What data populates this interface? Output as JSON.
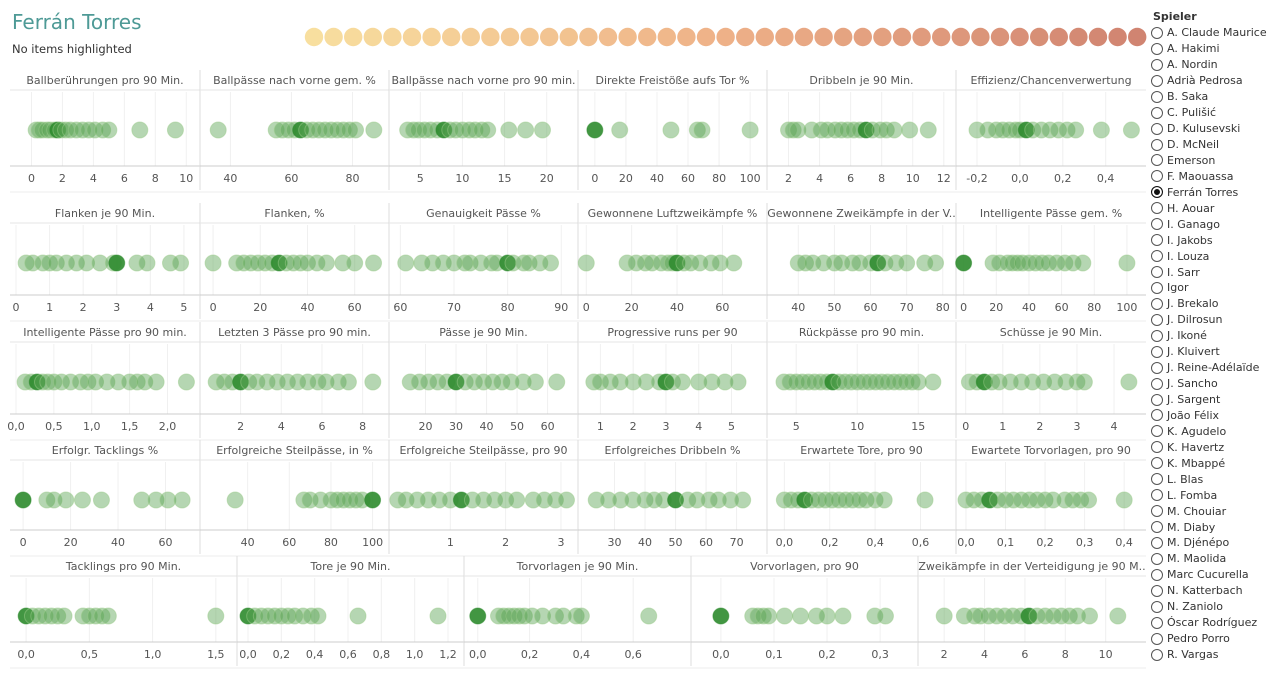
{
  "header": {
    "title": "Ferrán Torres",
    "subtitle": "No items highlighted"
  },
  "colorbar": {
    "dot_count": 43,
    "color_start": "#f7d98e",
    "color_mid": "#eba373",
    "color_end": "#c86e58"
  },
  "colors": {
    "dot": "#5aa454",
    "dot_light": "#9ccb8c",
    "dot_highlight": "#2e8b2e",
    "axis": "#cccccc"
  },
  "legend": {
    "title": "Spieler",
    "selected": "Ferrán Torres",
    "items": [
      "A. Claude Maurice",
      "A. Hakimi",
      "A. Nordin",
      "Adrià Pedrosa",
      "B. Saka",
      "C. Pulišić",
      "D. Kulusevski",
      "D. McNeil",
      "Emerson",
      "F. Maouassa",
      "Ferrán Torres",
      "H. Aouar",
      "I. Ganago",
      "I. Jakobs",
      "I. Louza",
      "I. Sarr",
      "Igor",
      "J. Brekalo",
      "J. Dilrosun",
      "J. Ikoné",
      "J. Kluivert",
      "J. Reine-Adélaïde",
      "J. Sancho",
      "J. Sargent",
      "João Félix",
      "K. Agudelo",
      "K. Havertz",
      "K. Mbappé",
      "L. Blas",
      "L. Fomba",
      "M. Chouiar",
      "M. Diaby",
      "M. Djénépo",
      "M. Maolida",
      "Marc Cucurella",
      "N. Katterbach",
      "N. Zaniolo",
      "Óscar Rodríguez",
      "Pedro Porro",
      "R. Vargas"
    ]
  },
  "chart_data": [
    {
      "type": "scatter",
      "title": "Ballberührungen pro 90 Min.",
      "xlim": [
        -1,
        10.5
      ],
      "ticks": [
        "0",
        "2",
        "4",
        "6",
        "8",
        "10"
      ],
      "tick_values": [
        0,
        2,
        4,
        6,
        8,
        10
      ],
      "values": [
        0.3,
        0.5,
        0.7,
        1.0,
        1.2,
        1.5,
        1.7,
        1.9,
        2.2,
        2.5,
        2.9,
        3.3,
        3.7,
        4.1,
        4.6,
        5.0,
        7.0,
        9.3
      ],
      "highlight": 1.7
    },
    {
      "type": "scatter",
      "title": "Ballpässe nach vorne gem. %",
      "xlim": [
        32,
        90
      ],
      "ticks": [
        "40",
        "60",
        "80"
      ],
      "tick_values": [
        40,
        60,
        80
      ],
      "values": [
        36,
        55,
        57,
        59,
        61,
        63,
        65,
        67,
        69,
        71,
        73,
        75,
        77,
        79,
        81,
        87
      ],
      "highlight": 63
    },
    {
      "type": "scatter",
      "title": "Ballpässe nach vorne pro 90 min.",
      "xlim": [
        2,
        23
      ],
      "ticks": [
        "5",
        "10",
        "15",
        "20"
      ],
      "tick_values": [
        5,
        10,
        15,
        20
      ],
      "values": [
        3.5,
        4.2,
        4.8,
        5.5,
        6.2,
        7.0,
        7.8,
        8.5,
        9.2,
        10.0,
        10.8,
        11.5,
        12.3,
        13.0,
        15.5,
        17.5,
        19.5
      ],
      "highlight": 7.8
    },
    {
      "type": "scatter",
      "title": "Direkte Freistöße aufs Tor %",
      "xlim": [
        -7,
        107
      ],
      "ticks": [
        "0",
        "20",
        "40",
        "60",
        "80",
        "100"
      ],
      "tick_values": [
        0,
        20,
        40,
        60,
        80,
        100
      ],
      "values": [
        0,
        16,
        49,
        66,
        69,
        100
      ],
      "highlight": 0
    },
    {
      "type": "scatter",
      "title": "Dribbeln je 90 Min.",
      "xlim": [
        1,
        12.4
      ],
      "ticks": [
        "2",
        "4",
        "6",
        "8",
        "10",
        "12"
      ],
      "tick_values": [
        2,
        4,
        6,
        8,
        10,
        12
      ],
      "values": [
        2.0,
        2.3,
        2.6,
        3.5,
        4.1,
        4.5,
        5.0,
        5.4,
        5.8,
        6.2,
        6.6,
        7.0,
        7.4,
        7.9,
        8.3,
        8.8,
        9.8,
        11.0
      ],
      "highlight": 7.0
    },
    {
      "type": "scatter",
      "title": "Effizienz/Chancenverwertung",
      "xlim": [
        -0.27,
        0.56
      ],
      "ticks": [
        "-0,2",
        "0,0",
        "0,2",
        "0,4"
      ],
      "tick_values": [
        -0.2,
        0,
        0.2,
        0.4
      ],
      "values": [
        -0.2,
        -0.15,
        -0.11,
        -0.08,
        -0.05,
        -0.02,
        0.0,
        0.03,
        0.06,
        0.1,
        0.14,
        0.18,
        0.22,
        0.26,
        0.38,
        0.52
      ],
      "highlight": 0.03
    },
    {
      "type": "scatter",
      "title": "Flanken je 90 Min.",
      "xlim": [
        0,
        5.3
      ],
      "ticks": [
        "0",
        "1",
        "2",
        "3",
        "4",
        "5"
      ],
      "tick_values": [
        0,
        1,
        2,
        3,
        4,
        5
      ],
      "values": [
        0.3,
        0.5,
        0.8,
        1.0,
        1.2,
        1.5,
        1.8,
        2.1,
        2.5,
        2.9,
        3.0,
        3.6,
        3.9,
        4.6,
        4.9
      ],
      "highlight": 3.0
    },
    {
      "type": "scatter",
      "title": "Flanken, %",
      "xlim": [
        -3,
        72
      ],
      "ticks": [
        "0",
        "20",
        "40",
        "60"
      ],
      "tick_values": [
        0,
        20,
        40,
        60
      ],
      "values": [
        0,
        10,
        13,
        16,
        19,
        22,
        25,
        28,
        31,
        34,
        37,
        40,
        44,
        48,
        55,
        60,
        68
      ],
      "highlight": 28
    },
    {
      "type": "scatter",
      "title": "Genauigkeit Pässe %",
      "xlim": [
        59,
        92
      ],
      "ticks": [
        "60",
        "70",
        "80",
        "90"
      ],
      "tick_values": [
        60,
        70,
        80,
        90
      ],
      "values": [
        61,
        64,
        66,
        68,
        70,
        72,
        73,
        75,
        77,
        78,
        80,
        81,
        83,
        84,
        86,
        88
      ],
      "highlight": 80
    },
    {
      "type": "scatter",
      "title": "Gewonnene Luftzweikämpfe %",
      "xlim": [
        -1,
        77
      ],
      "ticks": [
        "0",
        "20",
        "40",
        "60"
      ],
      "tick_values": [
        0,
        20,
        40,
        60
      ],
      "values": [
        0,
        18,
        22,
        26,
        29,
        33,
        36,
        38,
        40,
        43,
        46,
        50,
        55,
        59,
        65
      ],
      "highlight": 40
    },
    {
      "type": "scatter",
      "title": "Gewonnene Zweikämpfe in der V..",
      "xlim": [
        33,
        82
      ],
      "ticks": [
        "40",
        "50",
        "60",
        "70",
        "80"
      ],
      "tick_values": [
        40,
        50,
        60,
        70,
        80
      ],
      "values": [
        40,
        42,
        44,
        47,
        50,
        52,
        55,
        57,
        60,
        62,
        64,
        67,
        70,
        75,
        78
      ],
      "highlight": 62
    },
    {
      "type": "scatter",
      "title": "Intelligente Pässe gem. %",
      "xlim": [
        -1,
        108
      ],
      "ticks": [
        "0",
        "20",
        "40",
        "60",
        "80",
        "100"
      ],
      "tick_values": [
        0,
        20,
        40,
        60,
        80,
        100
      ],
      "values": [
        0,
        18,
        22,
        27,
        30,
        33,
        36,
        40,
        44,
        48,
        52,
        57,
        62,
        67,
        73,
        100
      ],
      "highlight": 0
    },
    {
      "type": "scatter",
      "title": "Intelligente Pässe pro 90 min.",
      "xlim": [
        0,
        2.35
      ],
      "ticks": [
        "0,0",
        "0,5",
        "1,0",
        "1,5",
        "2,0"
      ],
      "tick_values": [
        0,
        0.5,
        1,
        1.5,
        2
      ],
      "values": [
        0.12,
        0.2,
        0.28,
        0.35,
        0.42,
        0.5,
        0.6,
        0.72,
        0.85,
        0.95,
        1.05,
        1.2,
        1.35,
        1.5,
        1.6,
        1.7,
        1.85,
        2.25
      ],
      "highlight": 0.28
    },
    {
      "type": "scatter",
      "title": "Letzten 3 Pässe pro 90 min.",
      "xlim": [
        0.3,
        9.0
      ],
      "ticks": [
        "2",
        "4",
        "6",
        "8"
      ],
      "tick_values": [
        2,
        4,
        6,
        8
      ],
      "values": [
        0.8,
        1.2,
        1.6,
        2.0,
        2.4,
        2.8,
        3.3,
        3.8,
        4.3,
        4.8,
        5.3,
        5.8,
        6.2,
        6.8,
        7.3,
        8.5
      ],
      "highlight": 2.0
    },
    {
      "type": "scatter",
      "title": "Pässe je 90 Min.",
      "xlim": [
        10,
        68
      ],
      "ticks": [
        "20",
        "30",
        "40",
        "50",
        "60"
      ],
      "tick_values": [
        20,
        30,
        40,
        50,
        60
      ],
      "values": [
        15,
        18,
        21,
        24,
        27,
        30,
        33,
        36,
        39,
        42,
        45,
        48,
        52,
        56,
        63
      ],
      "highlight": 30
    },
    {
      "type": "scatter",
      "title": "Progressive runs per 90",
      "xlim": [
        0.5,
        5.9
      ],
      "ticks": [
        "1",
        "2",
        "3",
        "4",
        "5"
      ],
      "tick_values": [
        1,
        2,
        3,
        4,
        5
      ],
      "values": [
        0.8,
        1.0,
        1.3,
        1.6,
        2.0,
        2.4,
        2.8,
        3.0,
        3.2,
        3.5,
        4.0,
        4.4,
        4.8,
        5.2
      ],
      "highlight": 3.0
    },
    {
      "type": "scatter",
      "title": "Rückpässe pro 90 min.",
      "xlim": [
        3.1,
        17.6
      ],
      "ticks": [
        "5",
        "10",
        "15"
      ],
      "tick_values": [
        5,
        10,
        15
      ],
      "values": [
        4,
        4.5,
        5,
        5.5,
        6,
        6.5,
        7,
        7.5,
        8,
        8.5,
        9,
        9.5,
        10,
        10.5,
        11,
        11.5,
        12,
        12.5,
        13,
        13.5,
        14,
        14.5,
        15,
        16.2
      ],
      "highlight": 8.0
    },
    {
      "type": "scatter",
      "title": "Schüsse je 90 Min.",
      "xlim": [
        -0.1,
        4.7
      ],
      "ticks": [
        "0",
        "1",
        "2",
        "3",
        "4"
      ],
      "tick_values": [
        0,
        1,
        2,
        3,
        4
      ],
      "values": [
        0.1,
        0.3,
        0.5,
        0.7,
        0.9,
        1.2,
        1.5,
        1.8,
        2.1,
        2.4,
        2.7,
        3.0,
        3.2,
        4.4
      ],
      "highlight": 0.5
    },
    {
      "type": "scatter",
      "title": "Erfolgr. Tacklings %",
      "xlim": [
        -3,
        72
      ],
      "ticks": [
        "0",
        "20",
        "40",
        "60"
      ],
      "tick_values": [
        0,
        20,
        40,
        60
      ],
      "values": [
        0,
        10,
        13,
        18,
        25,
        33,
        50,
        56,
        61,
        67
      ],
      "highlight": 0
    },
    {
      "type": "scatter",
      "title": "Erfolgreiche Steilpässe, in %",
      "xlim": [
        20,
        105
      ],
      "ticks": [
        "40",
        "60",
        "80",
        "100"
      ],
      "tick_values": [
        40,
        60,
        80,
        100
      ],
      "values": [
        34,
        67,
        70,
        75,
        80,
        83,
        86,
        89,
        92,
        95,
        100
      ],
      "highlight": 100
    },
    {
      "type": "scatter",
      "title": "Erfolgreiche Steilpässe, pro 90",
      "xlim": [
        0,
        3.2
      ],
      "ticks": [
        "1",
        "2",
        "3"
      ],
      "tick_values": [
        1,
        2,
        3
      ],
      "values": [
        0.05,
        0.2,
        0.4,
        0.6,
        0.8,
        1.0,
        1.2,
        1.4,
        1.6,
        1.8,
        2.0,
        2.2,
        2.5,
        2.7,
        2.9,
        3.1
      ],
      "highlight": 1.2
    },
    {
      "type": "scatter",
      "title": "Erfolgreiches Dribbeln %",
      "xlim": [
        20,
        78
      ],
      "ticks": [
        "30",
        "40",
        "50",
        "60",
        "70"
      ],
      "tick_values": [
        30,
        40,
        50,
        60,
        70
      ],
      "values": [
        24,
        28,
        32,
        36,
        40,
        43,
        46,
        50,
        54,
        57,
        61,
        64,
        68,
        72
      ],
      "highlight": 50
    },
    {
      "type": "scatter",
      "title": "Erwartete Tore, pro 90",
      "xlim": [
        -0.05,
        0.73
      ],
      "ticks": [
        "0,0",
        "0,2",
        "0,4",
        "0,6"
      ],
      "tick_values": [
        0,
        0.2,
        0.4,
        0.6
      ],
      "values": [
        0.0,
        0.03,
        0.06,
        0.09,
        0.12,
        0.15,
        0.18,
        0.21,
        0.24,
        0.27,
        0.3,
        0.33,
        0.36,
        0.4,
        0.44,
        0.62
      ],
      "highlight": 0.09
    },
    {
      "type": "scatter",
      "title": "Ewartete Torvorlagen, pro 90",
      "xlim": [
        -0.01,
        0.44
      ],
      "ticks": [
        "0,0",
        "0,1",
        "0,2",
        "0,3",
        "0,4"
      ],
      "tick_values": [
        0,
        0.1,
        0.2,
        0.3,
        0.4
      ],
      "values": [
        0.0,
        0.02,
        0.04,
        0.06,
        0.08,
        0.1,
        0.12,
        0.14,
        0.16,
        0.18,
        0.2,
        0.22,
        0.25,
        0.27,
        0.29,
        0.31,
        0.4
      ],
      "highlight": 0.06
    },
    {
      "type": "scatter",
      "title": "Tacklings pro 90 Min.",
      "xlim": [
        -0.08,
        1.62
      ],
      "ticks": [
        "0,0",
        "0,5",
        "1,0",
        "1,5"
      ],
      "tick_values": [
        0,
        0.5,
        1,
        1.5
      ],
      "values": [
        0.0,
        0.05,
        0.1,
        0.15,
        0.2,
        0.25,
        0.3,
        0.45,
        0.5,
        0.55,
        0.6,
        0.65,
        1.5
      ],
      "highlight": 0.0
    },
    {
      "type": "scatter",
      "title": "Tore je 90 Min.",
      "xlim": [
        -0.03,
        1.26
      ],
      "ticks": [
        "0,0",
        "0,2",
        "0,4",
        "0,6",
        "0,8",
        "1,0",
        "1,2"
      ],
      "tick_values": [
        0,
        0.2,
        0.4,
        0.6,
        0.8,
        1.0,
        1.2
      ],
      "values": [
        0.0,
        0.04,
        0.08,
        0.12,
        0.16,
        0.2,
        0.24,
        0.28,
        0.33,
        0.38,
        0.42,
        0.66,
        1.14
      ],
      "highlight": 0.0
    },
    {
      "type": "scatter",
      "title": "Torvorlagen je 90 Min.",
      "xlim": [
        -0.03,
        0.8
      ],
      "ticks": [
        "0,0",
        "0,2",
        "0,4",
        "0,6"
      ],
      "tick_values": [
        0,
        0.2,
        0.4,
        0.6
      ],
      "values": [
        0.0,
        0.08,
        0.1,
        0.12,
        0.14,
        0.16,
        0.18,
        0.21,
        0.25,
        0.3,
        0.33,
        0.38,
        0.4,
        0.66
      ],
      "highlight": 0.0
    },
    {
      "type": "scatter",
      "title": "Vorvorlagen, pro 90",
      "xlim": [
        -0.045,
        0.36
      ],
      "ticks": [
        "0,0",
        "0,1",
        "0,2",
        "0,3"
      ],
      "tick_values": [
        0,
        0.1,
        0.2,
        0.3
      ],
      "values": [
        0.0,
        0.06,
        0.07,
        0.08,
        0.09,
        0.12,
        0.15,
        0.18,
        0.2,
        0.23,
        0.29,
        0.31
      ],
      "highlight": 0.0
    },
    {
      "type": "scatter",
      "title": "Zweikämpfe in der Verteidigung je 90 M..",
      "xlim": [
        1,
        11.7
      ],
      "ticks": [
        "2",
        "4",
        "6",
        "8",
        "10"
      ],
      "tick_values": [
        2,
        4,
        6,
        8,
        10
      ],
      "values": [
        2.0,
        3.0,
        3.5,
        3.8,
        4.2,
        4.6,
        5.0,
        5.4,
        5.8,
        6.2,
        6.6,
        7.0,
        7.4,
        7.8,
        8.2,
        8.6,
        9.2,
        10.6
      ],
      "highlight": 6.2
    }
  ]
}
